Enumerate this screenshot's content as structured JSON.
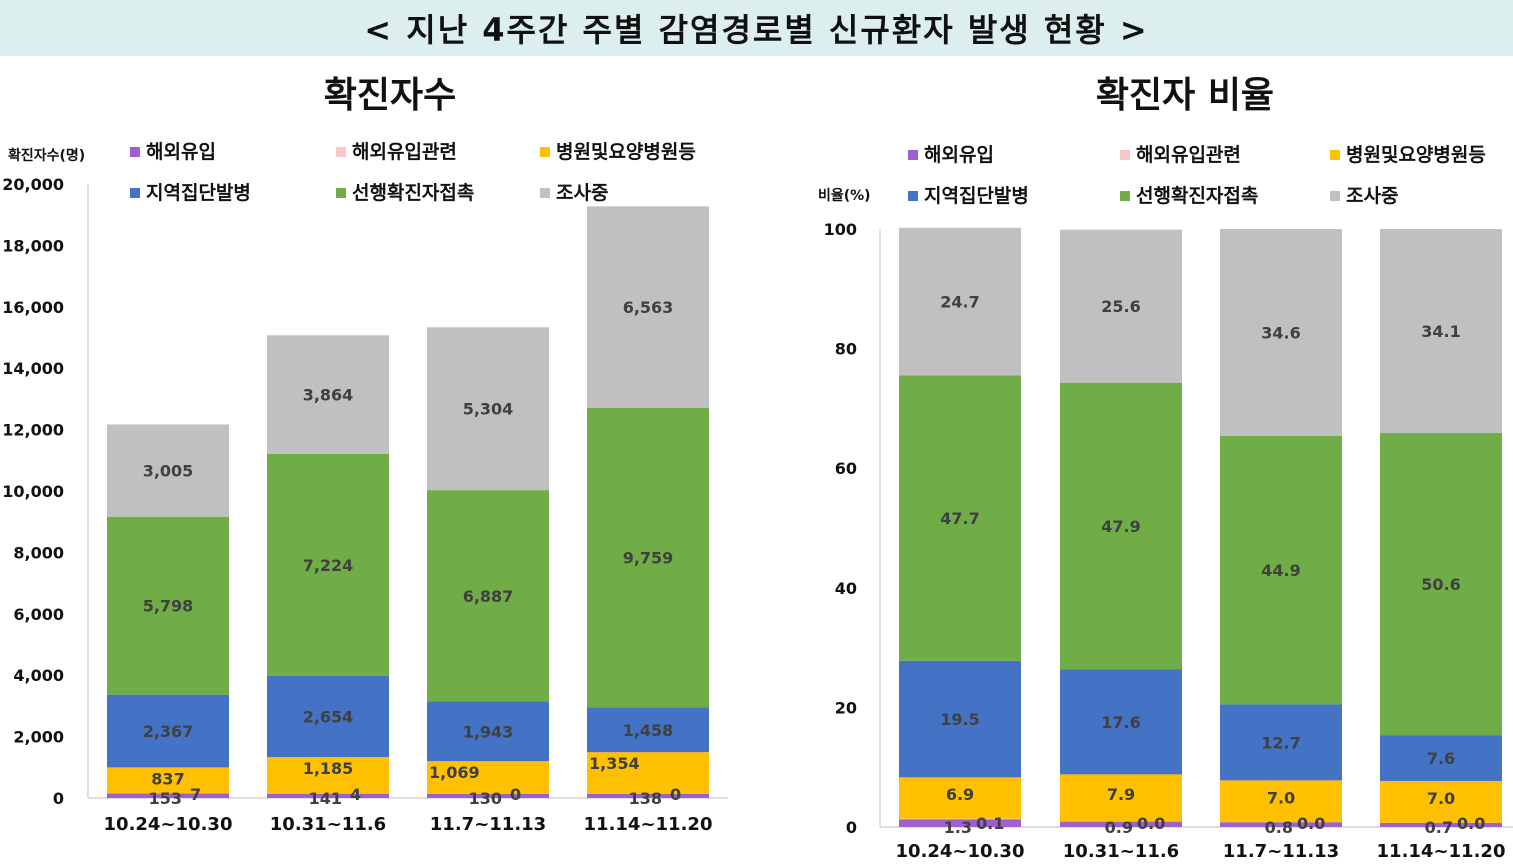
{
  "page_title": "< 지난 4주간 주별 감염경로별 신규환자 발생 현황 >",
  "colors": {
    "해외유입": "#9f5fd0",
    "해외유입관련": "#f6c8c8",
    "병원및요양병원등": "#ffc000",
    "지역집단발병": "#4472c4",
    "선행확진자접촉": "#70ad47",
    "조사중": "#c0c0c0"
  },
  "chart_data": [
    {
      "type": "bar",
      "stacked": true,
      "title": "확진자수",
      "ylabel": "확진자수(명)",
      "ylim": [
        0,
        20000
      ],
      "yticks": [
        "0",
        "2,000",
        "4,000",
        "6,000",
        "8,000",
        "10,000",
        "12,000",
        "14,000",
        "16,000",
        "18,000",
        "20,000"
      ],
      "categories": [
        "10.24~10.30",
        "10.31~11.6",
        "11.7~11.13",
        "11.14~11.20"
      ],
      "legend": [
        "해외유입",
        "해외유입관련",
        "병원및요양병원등",
        "지역집단발병",
        "선행확진자접촉",
        "조사중"
      ],
      "series": [
        {
          "name": "해외유입",
          "values": [
            153,
            141,
            130,
            138
          ],
          "labels": [
            "153",
            "141",
            "130",
            "138"
          ]
        },
        {
          "name": "해외유입관련",
          "values": [
            7,
            4,
            0,
            0
          ],
          "labels": [
            "7",
            "4",
            "0",
            "0"
          ]
        },
        {
          "name": "병원및요양병원등",
          "values": [
            837,
            1185,
            1069,
            1354
          ],
          "labels": [
            "837",
            "1,185",
            "1,069",
            "1,354"
          ]
        },
        {
          "name": "지역집단발병",
          "values": [
            2367,
            2654,
            1943,
            1458
          ],
          "labels": [
            "2,367",
            "2,654",
            "1,943",
            "1,458"
          ]
        },
        {
          "name": "선행확진자접촉",
          "values": [
            5798,
            7224,
            6887,
            9759
          ],
          "labels": [
            "5,798",
            "7,224",
            "6,887",
            "9,759"
          ]
        },
        {
          "name": "조사중",
          "values": [
            3005,
            3864,
            5304,
            6563
          ],
          "labels": [
            "3,005",
            "3,864",
            "5,304",
            "6,563"
          ]
        }
      ]
    },
    {
      "type": "bar",
      "stacked": true,
      "title": "확진자 비율",
      "ylabel": "비율(%)",
      "ylim": [
        0,
        100
      ],
      "yticks": [
        "0",
        "20",
        "40",
        "60",
        "80",
        "100"
      ],
      "categories": [
        "10.24~10.30",
        "10.31~11.6",
        "11.7~11.13",
        "11.14~11.20"
      ],
      "legend": [
        "해외유입",
        "해외유입관련",
        "병원및요양병원등",
        "지역집단발병",
        "선행확진자접촉",
        "조사중"
      ],
      "series": [
        {
          "name": "해외유입",
          "values": [
            1.3,
            0.9,
            0.8,
            0.7
          ],
          "labels": [
            "1.3",
            "0.9",
            "0.8",
            "0.7"
          ]
        },
        {
          "name": "해외유입관련",
          "values": [
            0.1,
            0.0,
            0.0,
            0.0
          ],
          "labels": [
            "0.1",
            "0.0",
            "0.0",
            "0.0"
          ]
        },
        {
          "name": "병원및요양병원등",
          "values": [
            6.9,
            7.9,
            7.0,
            7.0
          ],
          "labels": [
            "6.9",
            "7.9",
            "7.0",
            "7.0"
          ]
        },
        {
          "name": "지역집단발병",
          "values": [
            19.5,
            17.6,
            12.7,
            7.6
          ],
          "labels": [
            "19.5",
            "17.6",
            "12.7",
            "7.6"
          ]
        },
        {
          "name": "선행확진자접촉",
          "values": [
            47.7,
            47.9,
            44.9,
            50.6
          ],
          "labels": [
            "47.7",
            "47.9",
            "44.9",
            "50.6"
          ]
        },
        {
          "name": "조사중",
          "values": [
            24.7,
            25.6,
            34.6,
            34.1
          ],
          "labels": [
            "24.7",
            "25.6",
            "34.6",
            "34.1"
          ]
        }
      ]
    }
  ]
}
